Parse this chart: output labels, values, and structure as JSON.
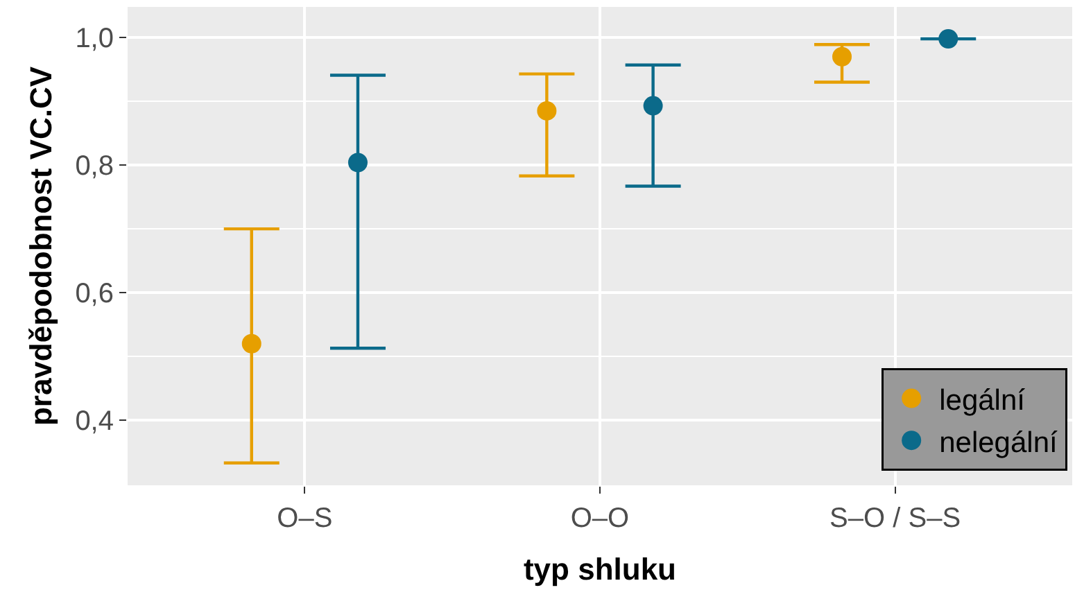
{
  "chart_data": {
    "type": "scatter",
    "xlabel": "typ shluku",
    "ylabel": "pravděpodobnost VC.CV",
    "categories": [
      "O–S",
      "O–O",
      "S–O / S–S"
    ],
    "series": [
      {
        "name": "legální",
        "color": "#e69f00",
        "values": [
          0.52,
          0.885,
          0.97
        ],
        "errors": [
          [
            0.333,
            0.7
          ],
          [
            0.783,
            0.943
          ],
          [
            0.93,
            0.989
          ]
        ]
      },
      {
        "name": "nelegální",
        "color": "#0b6a8a",
        "values": [
          0.804,
          0.893,
          0.998
        ],
        "errors": [
          [
            0.513,
            0.941
          ],
          [
            0.767,
            0.957
          ],
          [
            0.998,
            0.998
          ]
        ]
      }
    ],
    "ylim": [
      0.298,
      1.048
    ],
    "yticks": [
      {
        "value": 0.4,
        "label": "0,4"
      },
      {
        "value": 0.6,
        "label": "0,6"
      },
      {
        "value": 0.8,
        "label": "0,8"
      },
      {
        "value": 1.0,
        "label": "1,0"
      }
    ],
    "grid": true,
    "legend": "bottom right",
    "marker": "circle"
  }
}
